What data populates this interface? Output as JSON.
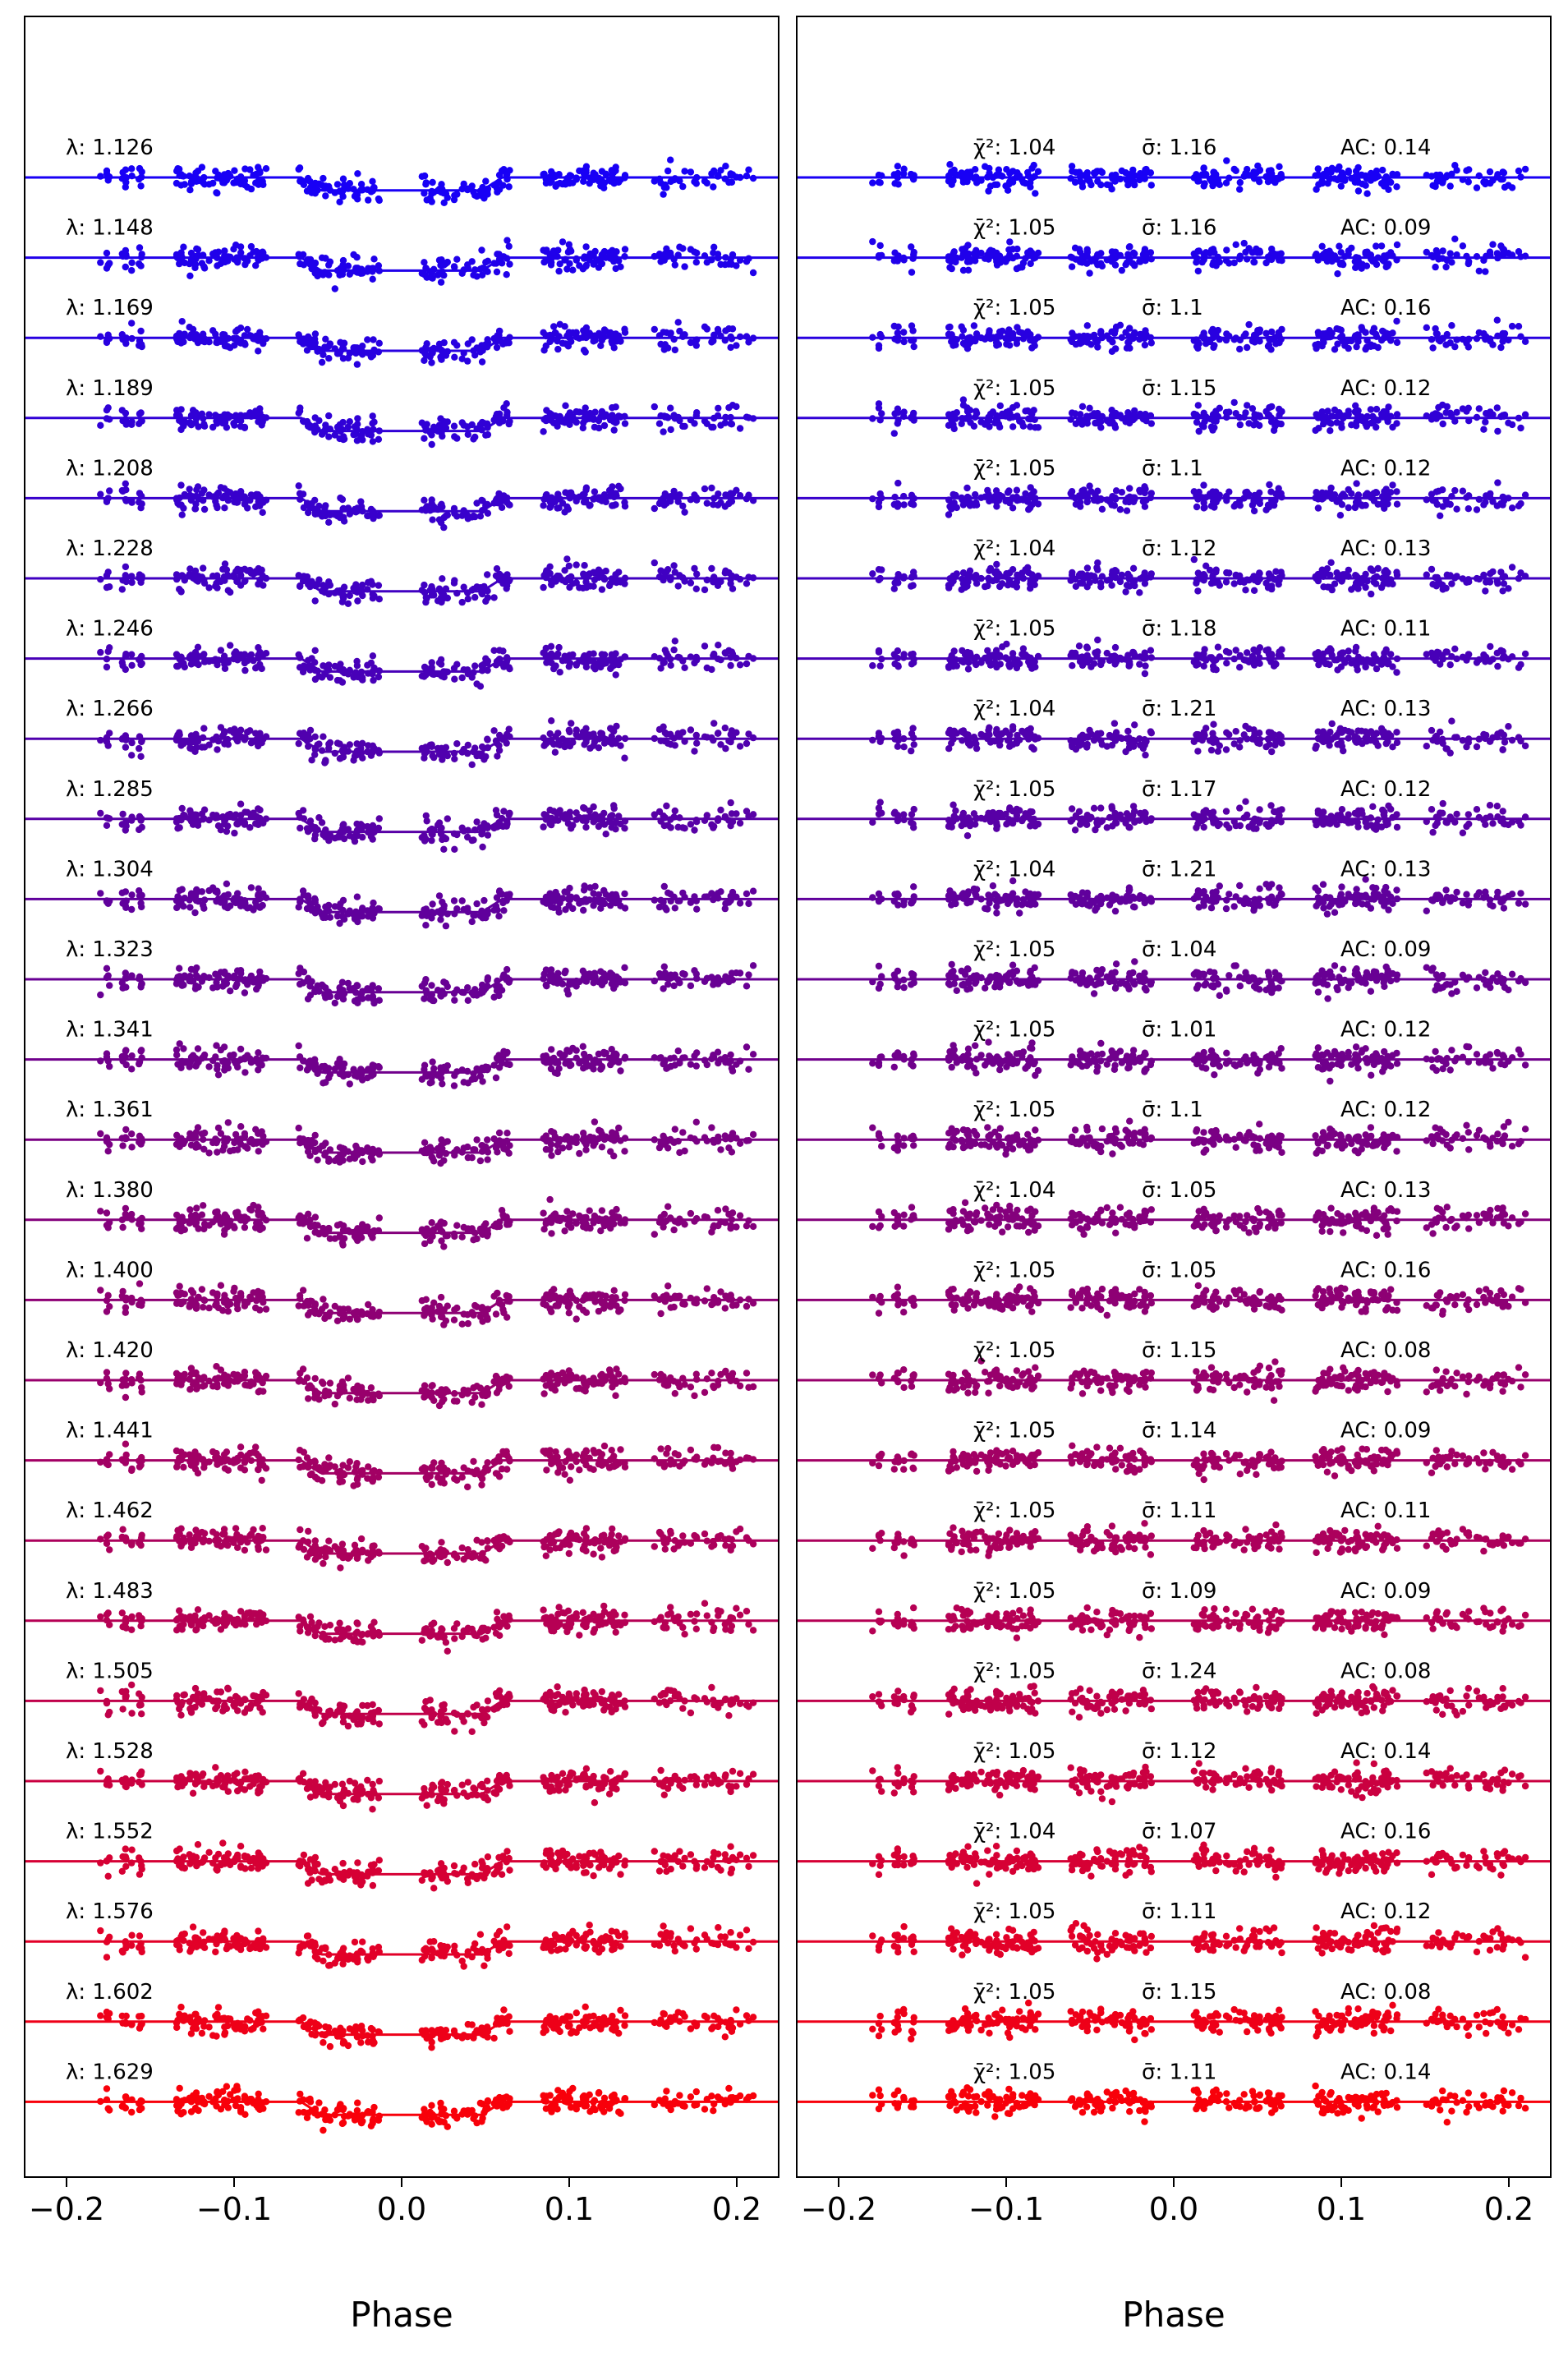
{
  "chart_data": [
    {
      "type": "scatter",
      "panel": "left",
      "xlabel": "Phase",
      "xlim": [
        -0.225,
        0.225
      ],
      "xticks": [
        -0.2,
        -0.1,
        0.0,
        0.1,
        0.2
      ],
      "xtick_labels": [
        "−0.2",
        "−0.1",
        "0.0",
        "0.1",
        "0.2"
      ],
      "grid": false,
      "legend": "none",
      "transit": {
        "center": 0.0,
        "duration": 0.12,
        "ingress": 0.012,
        "depth_sigma": 2.2
      },
      "channels": [
        {
          "label": "λ: 1.126",
          "color": "#1800f5"
        },
        {
          "label": "λ: 1.148",
          "color": "#2000ea"
        },
        {
          "label": "λ: 1.169",
          "color": "#2800e0"
        },
        {
          "label": "λ: 1.189",
          "color": "#3000d6"
        },
        {
          "label": "λ: 1.208",
          "color": "#3800cc"
        },
        {
          "label": "λ: 1.228",
          "color": "#4000c2"
        },
        {
          "label": "λ: 1.246",
          "color": "#4800b8"
        },
        {
          "label": "λ: 1.266",
          "color": "#5000ae"
        },
        {
          "label": "λ: 1.285",
          "color": "#5800a6"
        },
        {
          "label": "λ: 1.304",
          "color": "#60009c"
        },
        {
          "label": "λ: 1.323",
          "color": "#680094"
        },
        {
          "label": "λ: 1.341",
          "color": "#70008c"
        },
        {
          "label": "λ: 1.361",
          "color": "#7a0084"
        },
        {
          "label": "λ: 1.380",
          "color": "#84007c"
        },
        {
          "label": "λ: 1.400",
          "color": "#8e0074"
        },
        {
          "label": "λ: 1.420",
          "color": "#98006c"
        },
        {
          "label": "λ: 1.441",
          "color": "#a20064"
        },
        {
          "label": "λ: 1.462",
          "color": "#ac005c"
        },
        {
          "label": "λ: 1.483",
          "color": "#b60054"
        },
        {
          "label": "λ: 1.505",
          "color": "#c0004a"
        },
        {
          "label": "λ: 1.528",
          "color": "#ca0040"
        },
        {
          "label": "λ: 1.552",
          "color": "#d60034"
        },
        {
          "label": "λ: 1.576",
          "color": "#e20028"
        },
        {
          "label": "λ: 1.602",
          "color": "#ee0018"
        },
        {
          "label": "λ: 1.629",
          "color": "#f8000a"
        }
      ]
    },
    {
      "type": "scatter",
      "panel": "right",
      "xlabel": "Phase",
      "xlim": [
        -0.225,
        0.225
      ],
      "xticks": [
        -0.2,
        -0.1,
        0.0,
        0.1,
        0.2
      ],
      "xtick_labels": [
        "−0.2",
        "−0.1",
        "0.0",
        "0.1",
        "0.2"
      ],
      "grid": false,
      "legend": "none",
      "residual_stats": [
        {
          "chi2": "1.04",
          "sigma": "1.16",
          "ac": "0.14"
        },
        {
          "chi2": "1.05",
          "sigma": "1.16",
          "ac": "0.09"
        },
        {
          "chi2": "1.05",
          "sigma": "1.1",
          "ac": "0.16"
        },
        {
          "chi2": "1.05",
          "sigma": "1.15",
          "ac": "0.12"
        },
        {
          "chi2": "1.05",
          "sigma": "1.1",
          "ac": "0.12"
        },
        {
          "chi2": "1.04",
          "sigma": "1.12",
          "ac": "0.13"
        },
        {
          "chi2": "1.05",
          "sigma": "1.18",
          "ac": "0.11"
        },
        {
          "chi2": "1.04",
          "sigma": "1.21",
          "ac": "0.13"
        },
        {
          "chi2": "1.05",
          "sigma": "1.17",
          "ac": "0.12"
        },
        {
          "chi2": "1.04",
          "sigma": "1.21",
          "ac": "0.13"
        },
        {
          "chi2": "1.05",
          "sigma": "1.04",
          "ac": "0.09"
        },
        {
          "chi2": "1.05",
          "sigma": "1.01",
          "ac": "0.12"
        },
        {
          "chi2": "1.05",
          "sigma": "1.1",
          "ac": "0.12"
        },
        {
          "chi2": "1.04",
          "sigma": "1.05",
          "ac": "0.13"
        },
        {
          "chi2": "1.05",
          "sigma": "1.05",
          "ac": "0.16"
        },
        {
          "chi2": "1.05",
          "sigma": "1.15",
          "ac": "0.08"
        },
        {
          "chi2": "1.05",
          "sigma": "1.14",
          "ac": "0.09"
        },
        {
          "chi2": "1.05",
          "sigma": "1.11",
          "ac": "0.11"
        },
        {
          "chi2": "1.05",
          "sigma": "1.09",
          "ac": "0.09"
        },
        {
          "chi2": "1.05",
          "sigma": "1.24",
          "ac": "0.08"
        },
        {
          "chi2": "1.05",
          "sigma": "1.12",
          "ac": "0.14"
        },
        {
          "chi2": "1.04",
          "sigma": "1.07",
          "ac": "0.16"
        },
        {
          "chi2": "1.05",
          "sigma": "1.11",
          "ac": "0.12"
        },
        {
          "chi2": "1.05",
          "sigma": "1.15",
          "ac": "0.08"
        },
        {
          "chi2": "1.05",
          "sigma": "1.11",
          "ac": "0.14"
        }
      ]
    }
  ],
  "labels": {
    "chi2_prefix": "χ̄²: ",
    "sigma_prefix": "σ̄: ",
    "ac_prefix": "AC: "
  }
}
